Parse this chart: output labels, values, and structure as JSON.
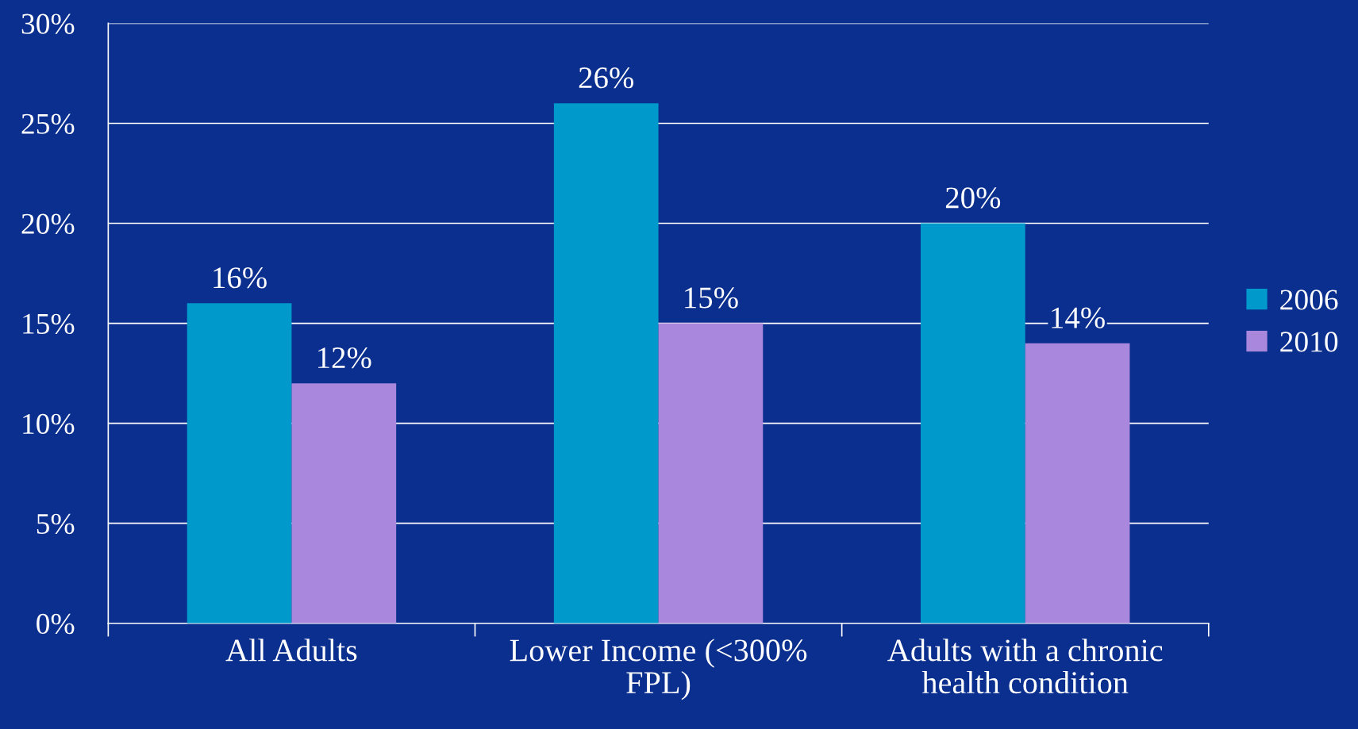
{
  "chart_data": {
    "type": "bar",
    "categories": [
      "All Adults",
      "Lower Income (<300%\nFPL)",
      "Adults with a chronic\nhealth condition"
    ],
    "series": [
      {
        "name": "2006",
        "color": "#0099cc",
        "values": [
          16,
          26,
          20
        ],
        "value_labels": [
          "16%",
          "26%",
          "20%"
        ]
      },
      {
        "name": "2010",
        "color": "#a987dc",
        "values": [
          12,
          15,
          14
        ],
        "value_labels": [
          "12%",
          "15%",
          "14%"
        ]
      }
    ],
    "ylim": [
      0,
      30
    ],
    "yticks": [
      {
        "value": 0,
        "label": "0%"
      },
      {
        "value": 5,
        "label": "5%"
      },
      {
        "value": 10,
        "label": "10%"
      },
      {
        "value": 15,
        "label": "15%"
      },
      {
        "value": 20,
        "label": "20%"
      },
      {
        "value": 25,
        "label": "25%"
      },
      {
        "value": 30,
        "label": "30%"
      }
    ],
    "grid": "y",
    "legend": "right"
  }
}
